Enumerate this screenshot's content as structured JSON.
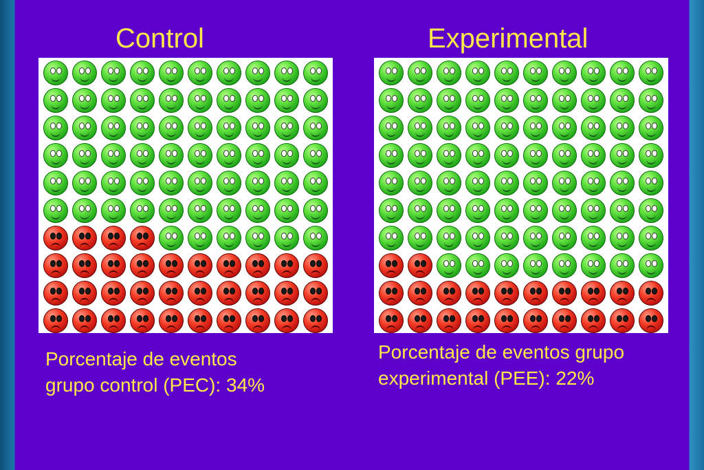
{
  "colors": {
    "background": "#5d00cc",
    "text": "#ffe94a",
    "event": "#d61a14",
    "no_event": "#3ccc2a"
  },
  "groups": [
    {
      "title": "Control",
      "total": 100,
      "events": 34,
      "caption_line1": "Porcentaje de eventos",
      "caption_line2": "grupo control (PEC): 34%"
    },
    {
      "title": "Experimental",
      "total": 100,
      "events": 22,
      "caption_line1": "Porcentaje de eventos grupo",
      "caption_line2": "experimental (PEE): 22%"
    }
  ]
}
